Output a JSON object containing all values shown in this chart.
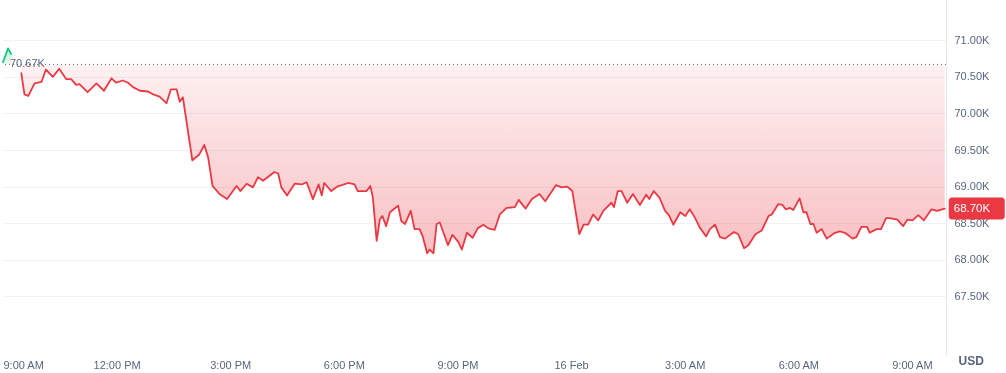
{
  "chart_data": {
    "type": "line",
    "ylabel": "USD",
    "xlim": [
      "--02-15T09:00",
      "--02-16T09:54"
    ],
    "ylim": [
      66.7,
      71.55
    ],
    "xticks": [
      {
        "value": "--02-15T09:00",
        "label": "9:00 AM"
      },
      {
        "value": "--02-15T12:00",
        "label": "12:00 PM"
      },
      {
        "value": "--02-15T15:00",
        "label": "3:00 PM"
      },
      {
        "value": "--02-15T18:00",
        "label": "6:00 PM"
      },
      {
        "value": "--02-15T21:00",
        "label": "9:00 PM"
      },
      {
        "value": "--02-16T00:00",
        "label": "16 Feb"
      },
      {
        "value": "--02-16T03:00",
        "label": "3:00 AM"
      },
      {
        "value": "--02-16T06:00",
        "label": "6:00 AM"
      },
      {
        "value": "--02-16T09:00",
        "label": "9:00 AM"
      }
    ],
    "yticks": [
      {
        "value": 67.5,
        "label": "67.50K"
      },
      {
        "value": 68,
        "label": "68.00K"
      },
      {
        "value": 68.5,
        "label": "68.50K"
      },
      {
        "value": 69,
        "label": "69.00K"
      },
      {
        "value": 69.5,
        "label": "69.50K"
      },
      {
        "value": 70,
        "label": "70.00K"
      },
      {
        "value": 70.5,
        "label": "70.50K"
      },
      {
        "value": 71,
        "label": "71.00K"
      }
    ],
    "grid": "y",
    "ref_lines": [
      {
        "axis": "y",
        "value": 70.67,
        "label": "70.67K",
        "line_style": "dotted",
        "color": "#58667e"
      }
    ],
    "annotations": [
      {
        "text": "68.70K",
        "x": "--02-16T09:52",
        "y": 68.7
      }
    ],
    "series": [
      {
        "color": "#16c784",
        "x": [
          "--02-15T09:00",
          "--02-15T09:08",
          "--02-15T09:13"
        ],
        "values": [
          70.7,
          70.89,
          70.81
        ],
        "lower": [
          70.67,
          70.67,
          70.67
        ],
        "upper": [
          70.7,
          70.89,
          70.81
        ]
      },
      {
        "color": "#ea3943",
        "x": [
          "--02-15T09:29",
          "--02-15T09:34",
          "--02-15T09:40",
          "--02-15T09:50",
          "--02-15T10:01",
          "--02-15T10:08",
          "--02-15T10:19",
          "--02-15T10:29",
          "--02-15T10:40",
          "--02-15T10:48",
          "--02-15T10:56",
          "--02-15T11:01",
          "--02-15T11:14",
          "--02-15T11:28",
          "--02-15T11:40",
          "--02-15T11:52",
          "--02-15T11:59",
          "--02-15T12:10",
          "--02-15T12:18",
          "--02-15T12:26",
          "--02-15T12:37",
          "--02-15T12:50",
          "--02-15T12:58",
          "--02-15T13:08",
          "--02-15T13:19",
          "--02-15T13:26",
          "--02-15T13:35",
          "--02-15T13:40",
          "--02-15T13:45",
          "--02-15T14:00",
          "--02-15T14:11",
          "--02-15T14:19",
          "--02-15T14:25",
          "--02-15T14:32",
          "--02-15T14:43",
          "--02-15T14:55",
          "--02-15T15:10",
          "--02-15T15:16",
          "--02-15T15:26",
          "--02-15T15:36",
          "--02-15T15:44",
          "--02-15T15:52",
          "--02-15T16:10",
          "--02-15T16:16",
          "--02-15T16:21",
          "--02-15T16:30",
          "--02-15T16:42",
          "--02-15T16:53",
          "--02-15T17:01",
          "--02-15T17:11",
          "--02-15T17:20",
          "--02-15T17:25",
          "--02-15T17:29",
          "--02-15T17:40",
          "--02-15T17:51",
          "--02-15T17:53",
          "--02-15T18:07",
          "--02-15T18:17",
          "--02-15T18:22",
          "--02-15T18:36",
          "--02-15T18:42",
          "--02-15T18:46",
          "--02-15T18:52",
          "--02-15T18:57",
          "--02-15T19:01",
          "--02-15T19:07",
          "--02-15T19:13",
          "--02-15T19:26",
          "--02-15T19:31",
          "--02-15T19:37",
          "--02-15T19:46",
          "--02-15T19:52",
          "--02-15T20:00",
          "--02-15T20:05",
          "--02-15T20:12",
          "--02-15T20:16",
          "--02-15T20:22",
          "--02-15T20:27",
          "--02-15T20:32",
          "--02-15T20:45",
          "--02-15T20:52",
          "--02-15T21:01",
          "--02-15T21:07",
          "--02-15T21:15",
          "--02-15T21:24",
          "--02-15T21:32",
          "--02-15T21:41",
          "--02-15T21:49",
          "--02-15T21:59",
          "--02-15T22:07",
          "--02-15T22:18",
          "--02-15T22:31",
          "--02-15T22:37",
          "--02-15T22:48",
          "--02-15T22:58",
          "--02-15T23:10",
          "--02-15T23:19",
          "--02-15T23:36",
          "--02-15T23:45",
          "--02-15T23:54",
          "--02-16T00:02",
          "--02-16T00:13",
          "--02-16T00:20",
          "--02-16T00:27",
          "--02-16T00:35",
          "--02-16T00:43",
          "--02-16T00:51",
          "--02-16T01:04",
          "--02-16T01:08",
          "--02-16T01:14",
          "--02-16T01:20",
          "--02-16T01:29",
          "--02-16T01:38",
          "--02-16T01:49",
          "--02-16T01:59",
          "--02-16T02:04",
          "--02-16T02:11",
          "--02-16T02:20",
          "--02-16T02:29",
          "--02-16T02:35",
          "--02-16T02:42",
          "--02-16T02:53",
          "--02-16T03:01",
          "--02-16T03:08",
          "--02-16T03:16",
          "--02-16T03:24",
          "--02-16T03:34",
          "--02-16T03:40",
          "--02-16T03:48",
          "--02-16T03:56",
          "--02-16T04:04",
          "--02-16T04:18",
          "--02-16T04:25",
          "--02-16T04:34",
          "--02-16T04:41",
          "--02-16T04:52",
          "--02-16T05:02",
          "--02-16T05:13",
          "--02-16T05:18",
          "--02-16T05:28",
          "--02-16T05:35",
          "--02-16T05:40",
          "--02-16T05:47",
          "--02-16T05:52",
          "--02-16T06:02",
          "--02-16T06:08",
          "--02-16T06:13",
          "--02-16T06:19",
          "--02-16T06:24",
          "--02-16T06:29",
          "--02-16T06:37",
          "--02-16T06:45",
          "--02-16T06:58",
          "--02-16T07:06",
          "--02-16T07:14",
          "--02-16T07:26",
          "--02-16T07:32",
          "--02-16T07:40",
          "--02-16T07:49",
          "--02-16T07:53",
          "--02-16T08:04",
          "--02-16T08:11",
          "--02-16T08:19",
          "--02-16T08:25",
          "--02-16T08:37",
          "--02-16T08:46",
          "--02-16T08:53",
          "--02-16T09:01",
          "--02-16T09:10",
          "--02-16T09:19",
          "--02-16T09:31",
          "--02-16T09:40",
          "--02-16T09:52"
        ],
        "values": [
          70.55,
          70.26,
          70.24,
          70.41,
          70.43,
          70.6,
          70.5,
          70.61,
          70.47,
          70.47,
          70.39,
          70.4,
          70.29,
          70.41,
          70.31,
          70.48,
          70.42,
          70.45,
          70.42,
          70.36,
          70.31,
          70.3,
          70.26,
          70.23,
          70.14,
          70.33,
          70.33,
          70.16,
          70.22,
          69.36,
          69.44,
          69.57,
          69.4,
          69.01,
          68.9,
          68.83,
          69.01,
          68.94,
          69.04,
          68.99,
          69.13,
          69.08,
          69.2,
          69.18,
          68.99,
          68.88,
          69.04,
          69.03,
          69.06,
          68.83,
          69.03,
          68.88,
          69.05,
          68.94,
          69.01,
          69.01,
          69.05,
          69.03,
          68.94,
          68.94,
          69.01,
          68.85,
          68.26,
          68.55,
          68.6,
          68.46,
          68.65,
          68.74,
          68.53,
          68.49,
          68.67,
          68.42,
          68.42,
          68.32,
          68.09,
          68.14,
          68.09,
          68.49,
          68.51,
          68.2,
          68.34,
          68.25,
          68.14,
          68.37,
          68.3,
          68.43,
          68.48,
          68.43,
          68.41,
          68.62,
          68.71,
          68.72,
          68.82,
          68.7,
          68.83,
          68.9,
          68.8,
          69.02,
          68.99,
          69.0,
          68.94,
          68.35,
          68.48,
          68.48,
          68.62,
          68.54,
          68.67,
          68.78,
          68.72,
          68.94,
          68.94,
          68.78,
          68.9,
          68.75,
          68.89,
          68.83,
          68.94,
          68.85,
          68.67,
          68.61,
          68.48,
          68.65,
          68.6,
          68.69,
          68.58,
          68.44,
          68.32,
          68.42,
          68.48,
          68.31,
          68.29,
          68.38,
          68.35,
          68.16,
          68.2,
          68.35,
          68.4,
          68.6,
          68.62,
          68.76,
          68.75,
          68.69,
          68.71,
          68.68,
          68.84,
          68.65,
          68.65,
          68.49,
          68.49,
          68.37,
          68.42,
          68.29,
          68.37,
          68.39,
          68.37,
          68.29,
          68.31,
          68.45,
          68.45,
          68.37,
          68.42,
          68.42,
          68.57,
          68.57,
          68.55,
          68.46,
          68.55,
          68.54,
          68.61,
          68.54,
          68.69,
          68.67,
          68.7
        ],
        "lower": [
          70.55,
          70.26,
          70.24,
          70.41,
          70.43,
          70.6,
          70.5,
          70.61,
          70.47,
          70.47,
          70.39,
          70.4,
          70.29,
          70.41,
          70.31,
          70.48,
          70.42,
          70.45,
          70.42,
          70.36,
          70.31,
          70.3,
          70.26,
          70.23,
          70.14,
          70.33,
          70.33,
          70.16,
          70.22,
          69.36,
          69.44,
          69.57,
          69.4,
          69.01,
          68.9,
          68.83,
          69.01,
          68.94,
          69.04,
          68.99,
          69.13,
          69.08,
          69.2,
          69.18,
          68.99,
          68.88,
          69.04,
          69.03,
          69.06,
          68.83,
          69.03,
          68.88,
          69.05,
          68.94,
          69.01,
          69.01,
          69.05,
          69.03,
          68.94,
          68.94,
          69.01,
          68.85,
          68.26,
          68.55,
          68.6,
          68.46,
          68.65,
          68.74,
          68.53,
          68.49,
          68.67,
          68.42,
          68.42,
          68.32,
          68.09,
          68.14,
          68.09,
          68.49,
          68.51,
          68.2,
          68.34,
          68.25,
          68.14,
          68.37,
          68.3,
          68.43,
          68.48,
          68.43,
          68.41,
          68.62,
          68.71,
          68.72,
          68.82,
          68.7,
          68.83,
          68.9,
          68.8,
          69.02,
          68.99,
          69.0,
          68.94,
          68.35,
          68.48,
          68.48,
          68.62,
          68.54,
          68.67,
          68.78,
          68.72,
          68.94,
          68.94,
          68.78,
          68.9,
          68.75,
          68.89,
          68.83,
          68.94,
          68.85,
          68.67,
          68.61,
          68.48,
          68.65,
          68.6,
          68.69,
          68.58,
          68.44,
          68.32,
          68.42,
          68.48,
          68.31,
          68.29,
          68.38,
          68.35,
          68.16,
          68.2,
          68.35,
          68.4,
          68.6,
          68.62,
          68.76,
          68.75,
          68.69,
          68.71,
          68.68,
          68.84,
          68.65,
          68.65,
          68.49,
          68.49,
          68.37,
          68.42,
          68.29,
          68.37,
          68.39,
          68.37,
          68.29,
          68.31,
          68.45,
          68.45,
          68.37,
          68.42,
          68.42,
          68.57,
          68.57,
          68.55,
          68.46,
          68.55,
          68.54,
          68.61,
          68.54,
          68.69,
          68.67,
          68.7
        ],
        "upper": [
          70.67,
          70.67,
          70.67,
          70.67,
          70.67,
          70.67,
          70.67,
          70.67,
          70.67,
          70.67,
          70.67,
          70.67,
          70.67,
          70.67,
          70.67,
          70.67,
          70.67,
          70.67,
          70.67,
          70.67,
          70.67,
          70.67,
          70.67,
          70.67,
          70.67,
          70.67,
          70.67,
          70.67,
          70.67,
          70.67,
          70.67,
          70.67,
          70.67,
          70.67,
          70.67,
          70.67,
          70.67,
          70.67,
          70.67,
          70.67,
          70.67,
          70.67,
          70.67,
          70.67,
          70.67,
          70.67,
          70.67,
          70.67,
          70.67,
          70.67,
          70.67,
          70.67,
          70.67,
          70.67,
          70.67,
          70.67,
          70.67,
          70.67,
          70.67,
          70.67,
          70.67,
          70.67,
          70.67,
          70.67,
          70.67,
          70.67,
          70.67,
          70.67,
          70.67,
          70.67,
          70.67,
          70.67,
          70.67,
          70.67,
          70.67,
          70.67,
          70.67,
          70.67,
          70.67,
          70.67,
          70.67,
          70.67,
          70.67,
          70.67,
          70.67,
          70.67,
          70.67,
          70.67,
          70.67,
          70.67,
          70.67,
          70.67,
          70.67,
          70.67,
          70.67,
          70.67,
          70.67,
          70.67,
          70.67,
          70.67,
          70.67,
          70.67,
          70.67,
          70.67,
          70.67,
          70.67,
          70.67,
          70.67,
          70.67,
          70.67,
          70.67,
          70.67,
          70.67,
          70.67,
          70.67,
          70.67,
          70.67,
          70.67,
          70.67,
          70.67,
          70.67,
          70.67,
          70.67,
          70.67,
          70.67,
          70.67,
          70.67,
          70.67,
          70.67,
          70.67,
          70.67,
          70.67,
          70.67,
          70.67,
          70.67,
          70.67,
          70.67,
          70.67,
          70.67,
          70.67,
          70.67,
          70.67,
          70.67,
          70.67,
          70.67,
          70.67,
          70.67,
          70.67,
          70.67,
          70.67,
          70.67,
          70.67,
          70.67,
          70.67,
          70.67,
          70.67,
          70.67,
          70.67,
          70.67,
          70.67,
          70.67,
          70.67,
          70.67,
          70.67,
          70.67,
          70.67,
          70.67,
          70.67,
          70.67,
          70.67,
          70.67,
          70.67,
          70.67
        ]
      }
    ]
  }
}
